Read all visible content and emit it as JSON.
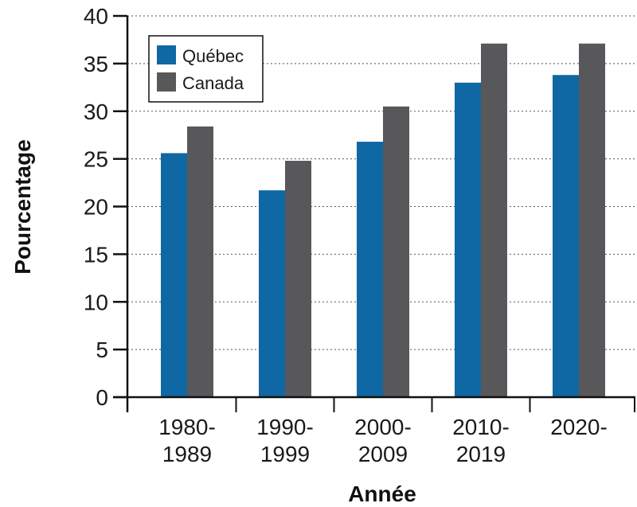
{
  "chart_data": {
    "type": "bar",
    "title": "",
    "xlabel": "Année",
    "ylabel": "Pourcentage",
    "categories": [
      [
        "1980-",
        "1989"
      ],
      [
        "1990-",
        "1999"
      ],
      [
        "2000-",
        "2009"
      ],
      [
        "2010-",
        "2019"
      ],
      [
        "2020-",
        ""
      ]
    ],
    "series": [
      {
        "name": "Québec",
        "color": "#0f67a3",
        "values": [
          25.6,
          21.7,
          26.8,
          33.0,
          33.8
        ]
      },
      {
        "name": "Canada",
        "color": "#58585a",
        "values": [
          28.4,
          24.8,
          30.5,
          37.1,
          37.1
        ]
      }
    ],
    "ylim": [
      0,
      40
    ],
    "yticks": [
      0,
      5,
      10,
      15,
      20,
      25,
      30,
      35,
      40
    ],
    "grid": true,
    "legend_position": "top-left"
  }
}
